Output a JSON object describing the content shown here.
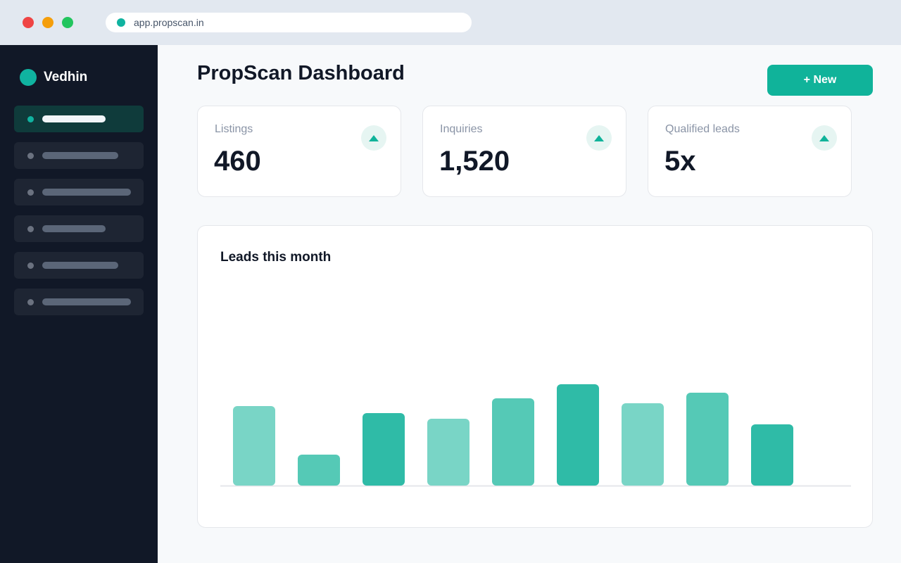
{
  "browser": {
    "url": "app.propscan.in"
  },
  "sidebar": {
    "brand": "Vedhin",
    "items": [
      {
        "active": true
      },
      {
        "active": false
      },
      {
        "active": false
      },
      {
        "active": false
      },
      {
        "active": false
      },
      {
        "active": false
      }
    ]
  },
  "header": {
    "title": "PropScan Dashboard",
    "new_button_label": "+ New"
  },
  "stats": [
    {
      "label": "Listings",
      "value": "460",
      "icon": "trend-up-icon"
    },
    {
      "label": "Inquiries",
      "value": "1,520",
      "icon": "trend-up-icon"
    },
    {
      "label": "Qualified leads",
      "value": "5x",
      "icon": "trend-up-icon"
    }
  ],
  "colors": {
    "accent": "#10b39a",
    "sidebar_bg": "#111827",
    "bar_light": "#79d5c6",
    "bar_mid": "#55c9b6",
    "bar_dark": "#2fbba7"
  },
  "chart_data": {
    "type": "bar",
    "title": "Leads this month",
    "xlabel": "",
    "ylabel": "",
    "grid": false,
    "values": [
      113,
      44,
      103,
      95,
      124,
      144,
      117,
      132,
      87
    ],
    "shades": [
      "light",
      "mid",
      "dark",
      "light",
      "mid",
      "dark",
      "light",
      "mid",
      "dark"
    ],
    "ylim": [
      0,
      160
    ]
  }
}
